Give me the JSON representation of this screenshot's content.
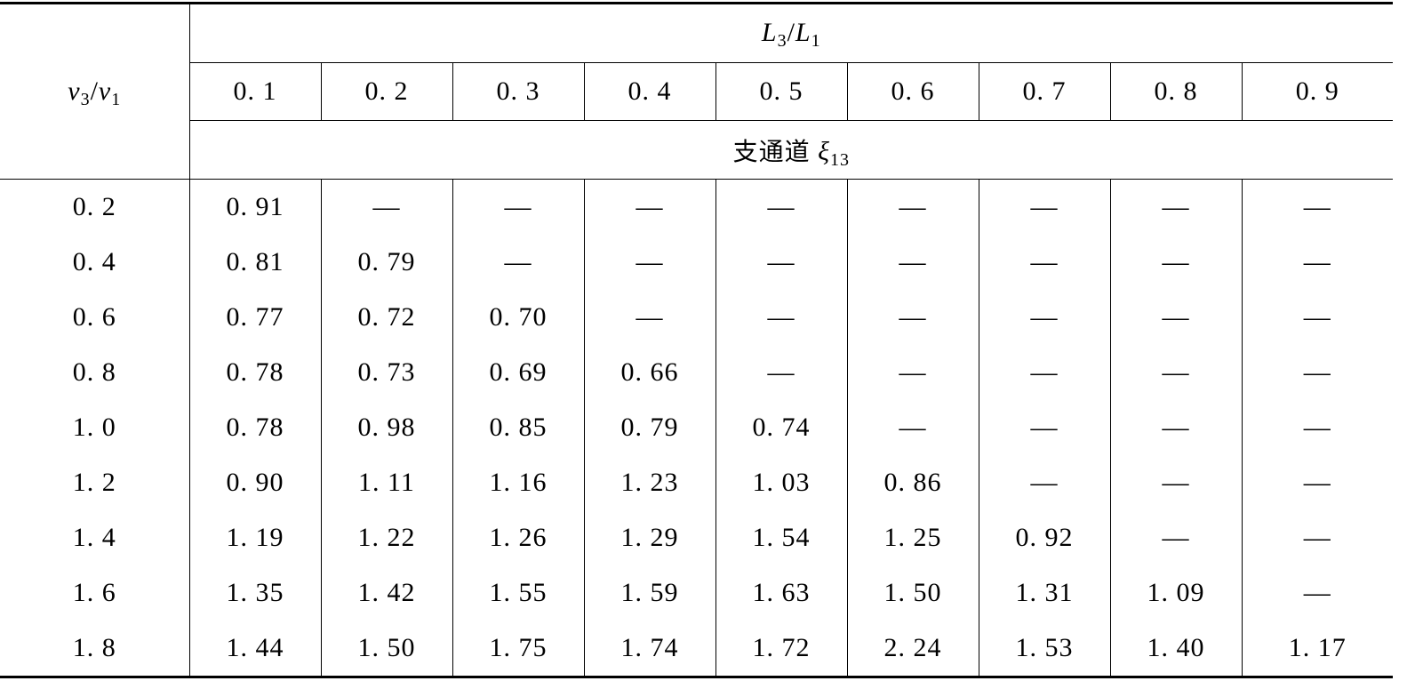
{
  "header": {
    "row_axis": {
      "base": "v",
      "sub1": "3",
      "slash": "/",
      "base2": "v",
      "sub2": "1"
    },
    "col_axis": {
      "base": "L",
      "sub1": "3",
      "slash": "/",
      "base2": "L",
      "sub2": "1"
    },
    "sub_label": {
      "text": "支通道",
      "symbol": "ξ",
      "sub": "13"
    },
    "columns": [
      "0. 1",
      "0. 2",
      "0. 3",
      "0. 4",
      "0. 5",
      "0. 6",
      "0. 7",
      "0. 8",
      "0. 9"
    ]
  },
  "rows": [
    {
      "label": "0. 2",
      "cells": [
        "0. 91",
        "—",
        "—",
        "—",
        "—",
        "—",
        "—",
        "—",
        "—"
      ]
    },
    {
      "label": "0. 4",
      "cells": [
        "0. 81",
        "0. 79",
        "—",
        "—",
        "—",
        "—",
        "—",
        "—",
        "—"
      ]
    },
    {
      "label": "0. 6",
      "cells": [
        "0. 77",
        "0. 72",
        "0. 70",
        "—",
        "—",
        "—",
        "—",
        "—",
        "—"
      ]
    },
    {
      "label": "0. 8",
      "cells": [
        "0. 78",
        "0. 73",
        "0. 69",
        "0. 66",
        "—",
        "—",
        "—",
        "—",
        "—"
      ]
    },
    {
      "label": "1. 0",
      "cells": [
        "0. 78",
        "0. 98",
        "0. 85",
        "0. 79",
        "0. 74",
        "—",
        "—",
        "—",
        "—"
      ]
    },
    {
      "label": "1. 2",
      "cells": [
        "0. 90",
        "1. 11",
        "1. 16",
        "1. 23",
        "1. 03",
        "0. 86",
        "—",
        "—",
        "—"
      ]
    },
    {
      "label": "1. 4",
      "cells": [
        "1. 19",
        "1. 22",
        "1. 26",
        "1. 29",
        "1. 54",
        "1. 25",
        "0. 92",
        "—",
        "—"
      ]
    },
    {
      "label": "1. 6",
      "cells": [
        "1. 35",
        "1. 42",
        "1. 55",
        "1. 59",
        "1. 63",
        "1. 50",
        "1. 31",
        "1. 09",
        "—"
      ]
    },
    {
      "label": "1. 8",
      "cells": [
        "1. 44",
        "1. 50",
        "1. 75",
        "1. 74",
        "1. 72",
        "2. 24",
        "1. 53",
        "1. 40",
        "1. 17"
      ]
    }
  ]
}
